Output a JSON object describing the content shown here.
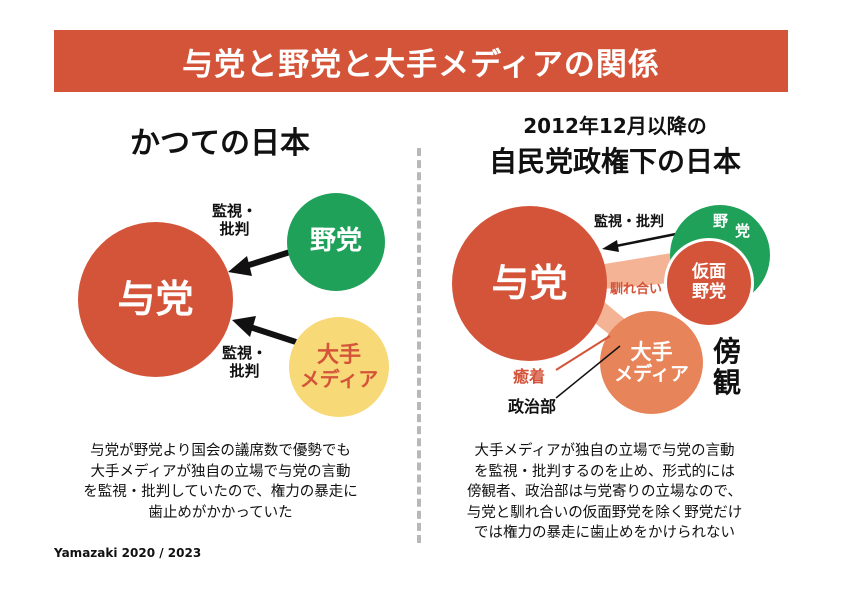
{
  "title": "与党と野党と大手メディアの関係",
  "left": {
    "heading": "かつての日本",
    "ruling": "与党",
    "opposition": "野党",
    "media_line1": "大手",
    "media_line2": "メディア",
    "arrow_top_line1": "監視・",
    "arrow_top_line2": "批判",
    "arrow_bottom_line1": "監視・",
    "arrow_bottom_line2": "批判",
    "description": "与党が野党より国会の議席数で優勢でも\n大手メディアが独自の立場で与党の言動\nを監視・批判していたので、権力の暴走に\n歯止めがかかっていた"
  },
  "right": {
    "heading_line1": "2012年12月以降の",
    "heading_line2": "自民党政権下の日本",
    "ruling": "与党",
    "opposition_char1": "野",
    "opposition_char2": "党",
    "pseudo_line1": "仮面",
    "pseudo_line2": "野党",
    "media_line1": "大手",
    "media_line2": "メディア",
    "arrow_label": "監視・批判",
    "collusion": "馴れ合い",
    "adhesion": "癒着",
    "politics_dept": "政治部",
    "bystander_line1": "傍",
    "bystander_line2": "観",
    "description": "大手メディアが独自の立場で与党の言動\nを監視・批判するのを止め、形式的には\n傍観者、政治部は与党寄りの立場なので、\n与党と馴れ合いの仮面野党を除く野党だけ\nでは権力の暴走に歯止めをかけられない"
  },
  "credit": "Yamazaki 2020 / 2023",
  "colors": {
    "banner": "#d4543a",
    "ruling": "#d4543a",
    "opposition": "#1fa15a",
    "pseudo_opposition": "#d4543a",
    "media_left": "#f8d977",
    "media_text_left": "#d4543a",
    "media_right": "#e8845a",
    "band": "#f4b394",
    "label_red": "#d4543a"
  }
}
